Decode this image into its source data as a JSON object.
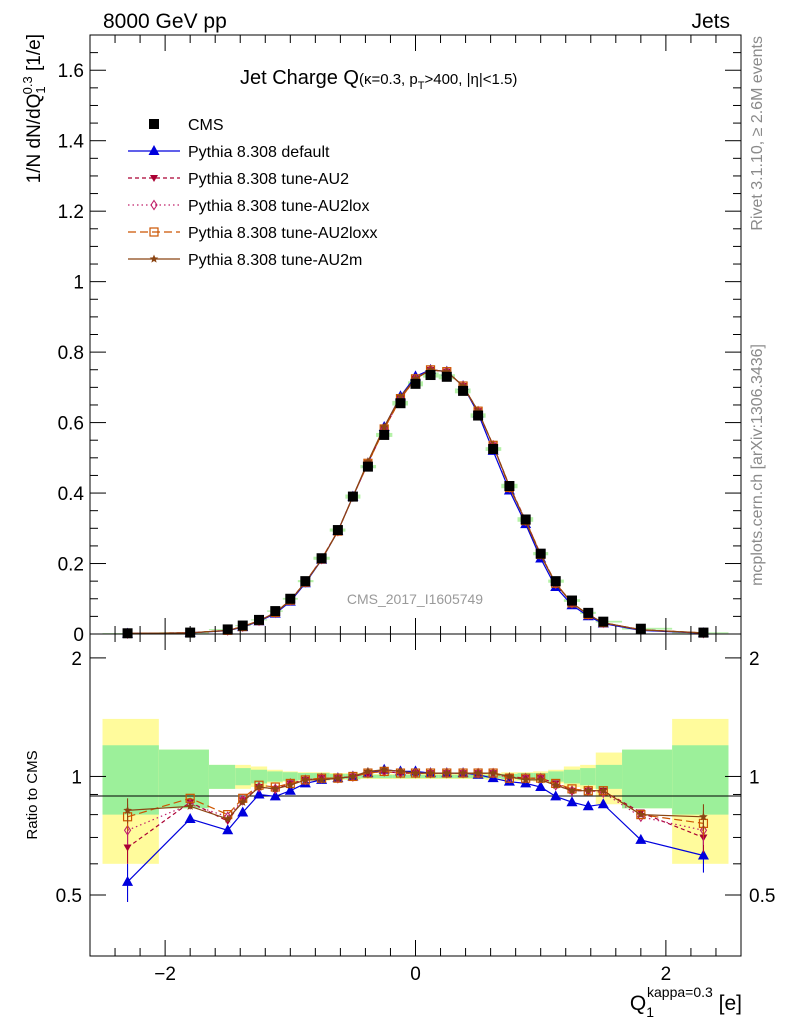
{
  "header": {
    "left": "8000 GeV pp",
    "right": "Jets"
  },
  "side": {
    "rivet": "Rivet 3.1.10, ≥ 2.6M events",
    "source": "mcplots.cern.ch [arXiv:1306.3436]"
  },
  "watermark": "CMS_2017_I1605749",
  "chart_data": [
    {
      "type": "line",
      "title": {
        "main": "Jet Charge Q",
        "sub_a": "(κ=0.3, p",
        "sub_T": "T",
        "sub_b": ">400, |η|<1.5)"
      },
      "ylabel": {
        "pre": "1/N dN/dQ",
        "sub": "1",
        "sup": "0.3",
        "post": " [1/e]"
      },
      "xlim": [
        -2.6,
        2.6
      ],
      "ylim": [
        0,
        1.7
      ],
      "yticks": [
        "0",
        "0.2",
        "0.4",
        "0.6",
        "0.8",
        "1",
        "1.2",
        "1.4",
        "1.6"
      ],
      "x": [
        -2.3,
        -1.8,
        -1.5,
        -1.38,
        -1.25,
        -1.12,
        -1.0,
        -0.88,
        -0.75,
        -0.62,
        -0.5,
        -0.38,
        -0.25,
        -0.12,
        0.0,
        0.12,
        0.25,
        0.38,
        0.5,
        0.62,
        0.75,
        0.88,
        1.0,
        1.12,
        1.25,
        1.38,
        1.5,
        1.8,
        2.3
      ],
      "series": [
        {
          "name": "CMS",
          "color": "#000000",
          "marker": "square",
          "values": [
            0.002,
            0.004,
            0.013,
            0.024,
            0.04,
            0.065,
            0.1,
            0.15,
            0.215,
            0.295,
            0.39,
            0.475,
            0.565,
            0.655,
            0.71,
            0.735,
            0.73,
            0.69,
            0.62,
            0.525,
            0.42,
            0.325,
            0.228,
            0.15,
            0.095,
            0.06,
            0.035,
            0.015,
            0.004
          ],
          "band_inner": [
            0.2,
            0.17,
            0.07,
            0.05,
            0.04,
            0.03,
            0.025,
            0.02,
            0.02,
            0.015,
            0.015,
            0.01,
            0.01,
            0.01,
            0.01,
            0.01,
            0.01,
            0.01,
            0.01,
            0.01,
            0.015,
            0.02,
            0.02,
            0.03,
            0.04,
            0.05,
            0.07,
            0.17,
            0.2
          ],
          "band_outer": [
            0.4,
            0.17,
            0.07,
            0.07,
            0.06,
            0.04,
            0.03,
            0.025,
            0.025,
            0.02,
            0.02,
            0.015,
            0.015,
            0.015,
            0.015,
            0.015,
            0.015,
            0.015,
            0.015,
            0.02,
            0.025,
            0.025,
            0.03,
            0.04,
            0.06,
            0.07,
            0.15,
            0.17,
            0.4
          ]
        },
        {
          "name": "Pythia 8.308 default",
          "color": "#0000dd",
          "marker": "triangle-up",
          "dash": "none",
          "ratio": [
            0.54,
            0.78,
            0.73,
            0.81,
            0.9,
            0.89,
            0.92,
            0.96,
            0.98,
            0.99,
            1.0,
            1.02,
            1.04,
            1.03,
            1.03,
            1.02,
            1.02,
            1.02,
            1.01,
            0.99,
            0.97,
            0.96,
            0.94,
            0.89,
            0.86,
            0.84,
            0.85,
            0.69,
            0.63
          ]
        },
        {
          "name": "Pythia 8.308 tune-AU2",
          "color": "#aa0033",
          "marker": "triangle-down",
          "dash": "4,3",
          "ratio": [
            0.66,
            0.86,
            0.77,
            0.87,
            0.94,
            0.93,
            0.96,
            0.98,
            0.99,
            0.99,
            1.0,
            1.02,
            1.03,
            1.02,
            1.02,
            1.02,
            1.02,
            1.02,
            1.02,
            1.02,
            1.0,
            0.99,
            0.99,
            0.96,
            0.92,
            0.92,
            0.92,
            0.81,
            0.7
          ]
        },
        {
          "name": "Pythia 8.308 tune-AU2lox",
          "color": "#c0206a",
          "marker": "diamond-open",
          "dash": "1.5,3",
          "ratio": [
            0.73,
            0.85,
            0.79,
            0.87,
            0.94,
            0.93,
            0.96,
            0.98,
            0.99,
            0.99,
            1.0,
            1.02,
            1.03,
            1.02,
            1.02,
            1.02,
            1.02,
            1.02,
            1.02,
            1.02,
            0.99,
            0.99,
            0.99,
            0.95,
            0.92,
            0.92,
            0.91,
            0.79,
            0.73
          ]
        },
        {
          "name": "Pythia 8.308 tune-AU2loxx",
          "color": "#cc5500",
          "marker": "square-open",
          "dash": "8,4",
          "ratio": [
            0.79,
            0.88,
            0.8,
            0.88,
            0.95,
            0.94,
            0.96,
            0.98,
            0.99,
            0.99,
            1.0,
            1.02,
            1.03,
            1.02,
            1.02,
            1.02,
            1.02,
            1.02,
            1.02,
            1.02,
            0.99,
            0.99,
            0.99,
            0.96,
            0.93,
            0.92,
            0.92,
            0.8,
            0.76
          ]
        },
        {
          "name": "Pythia 8.308 tune-AU2m",
          "color": "#8b4513",
          "marker": "star",
          "dash": "none",
          "ratio": [
            0.82,
            0.84,
            0.78,
            0.86,
            0.94,
            0.93,
            0.95,
            0.98,
            0.98,
            0.99,
            1.0,
            1.03,
            1.04,
            1.03,
            1.02,
            1.02,
            1.02,
            1.02,
            1.02,
            1.02,
            1.0,
            0.98,
            0.98,
            0.95,
            0.92,
            0.92,
            0.92,
            0.8,
            0.79
          ]
        }
      ]
    },
    {
      "type": "line",
      "ylabel": "Ratio to CMS",
      "ylim": [
        0.35,
        2.3
      ],
      "yticks": [
        "0.5",
        "1",
        "2"
      ],
      "xticks": [
        "−2",
        "0",
        "2"
      ],
      "xlabel": {
        "pre": "Q",
        "sub": "1",
        "sup": "kappa=0.3",
        "post": " [e]"
      }
    }
  ]
}
